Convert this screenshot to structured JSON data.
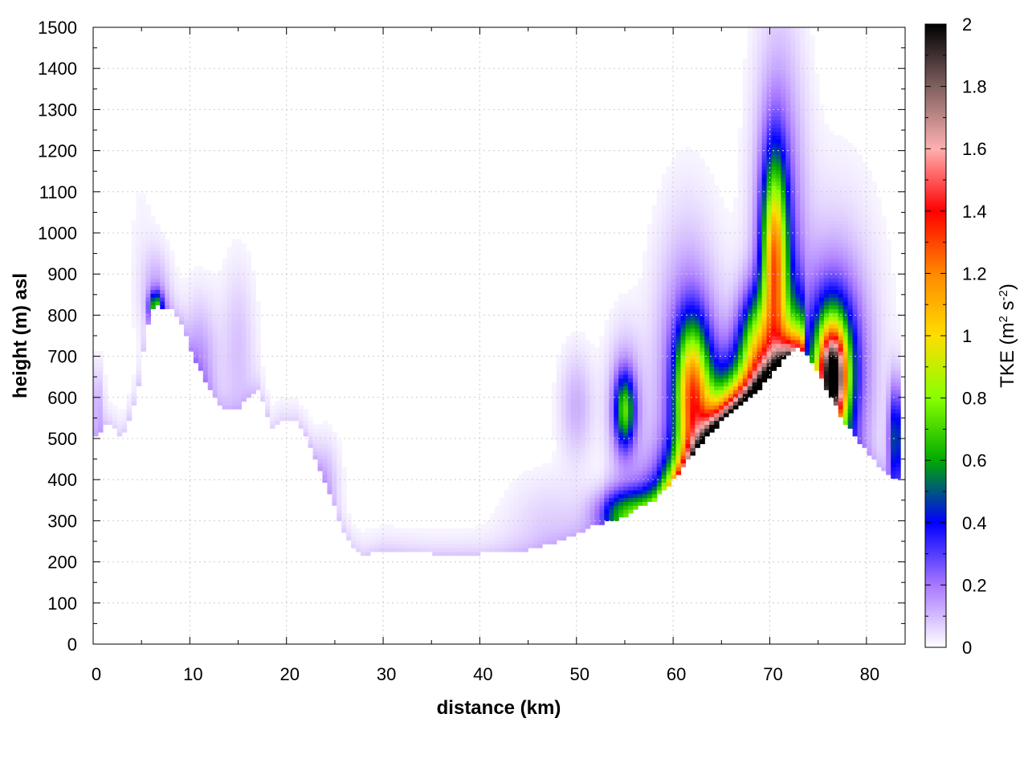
{
  "chart_data": {
    "type": "heatmap",
    "title": "",
    "xlabel": "distance (km)",
    "ylabel": "height (m) asl",
    "xlim": [
      0,
      84
    ],
    "ylim": [
      0,
      1500
    ],
    "x_ticks": [
      0,
      10,
      20,
      30,
      40,
      50,
      60,
      70,
      80
    ],
    "y_ticks": [
      0,
      100,
      200,
      300,
      400,
      500,
      600,
      700,
      800,
      900,
      1000,
      1100,
      1200,
      1300,
      1400,
      1500
    ],
    "grid": true,
    "colorbar": {
      "label_main": "TKE (m",
      "label_sup1": "2",
      "label_mid": " s",
      "label_sup2": "-2",
      "label_end": ")",
      "range": [
        0,
        2
      ],
      "ticks": [
        0,
        0.2,
        0.4,
        0.6,
        0.8,
        1,
        1.2,
        1.4,
        1.6,
        1.8,
        2
      ],
      "colors": [
        "#ffffff",
        "#a878ff",
        "#0000ff",
        "#00aa00",
        "#88ff00",
        "#ffdd00",
        "#ff8800",
        "#ff0000",
        "#ffb0b0",
        "#806060",
        "#000000"
      ]
    },
    "terrain": {
      "x": [
        0,
        1.5,
        3,
        4.5,
        5.5,
        6.3,
        7,
        8,
        9,
        10,
        11,
        12,
        13,
        14,
        15,
        16,
        17,
        18,
        18.5,
        19.5,
        21,
        22,
        23,
        24,
        25,
        26,
        27,
        28,
        30,
        35,
        40,
        45,
        48,
        50,
        52,
        55,
        57,
        58,
        60,
        62,
        64,
        66,
        68,
        70,
        71,
        72,
        73,
        74,
        75,
        76,
        77,
        78,
        79,
        80,
        81,
        82,
        83,
        83.5
      ],
      "height": [
        500,
        540,
        500,
        600,
        760,
        830,
        820,
        820,
        790,
        720,
        670,
        620,
        580,
        570,
        570,
        600,
        620,
        560,
        520,
        540,
        540,
        510,
        450,
        390,
        330,
        270,
        230,
        215,
        230,
        220,
        220,
        230,
        250,
        270,
        290,
        310,
        340,
        350,
        400,
        460,
        520,
        560,
        600,
        650,
        680,
        710,
        720,
        700,
        660,
        610,
        570,
        530,
        500,
        470,
        440,
        420,
        400,
        400
      ]
    },
    "hotspots": [
      {
        "x": 6.5,
        "z": 820,
        "sx": 0.5,
        "sz": 25,
        "v": 0.55
      },
      {
        "x": 6.5,
        "z": 860,
        "sx": 1.0,
        "sz": 70,
        "v": 0.12
      },
      {
        "x": 5,
        "z": 950,
        "sx": 1.2,
        "sz": 200,
        "v": 0.02
      },
      {
        "x": 11,
        "z": 680,
        "sx": 1.3,
        "sz": 110,
        "v": 0.15
      },
      {
        "x": 15,
        "z": 720,
        "sx": 1.2,
        "sz": 140,
        "v": 0.09
      },
      {
        "x": 24,
        "z": 400,
        "sx": 1.0,
        "sz": 70,
        "v": 0.1
      },
      {
        "x": 0.5,
        "z": 580,
        "sx": 0.4,
        "sz": 70,
        "v": 0.12
      },
      {
        "x": 50,
        "z": 580,
        "sx": 1.2,
        "sz": 90,
        "v": 0.12
      },
      {
        "x": 55,
        "z": 570,
        "sx": 0.7,
        "sz": 60,
        "v": 0.55
      },
      {
        "x": 55,
        "z": 580,
        "sx": 1.3,
        "sz": 120,
        "v": 0.18
      },
      {
        "x": 62,
        "z": 620,
        "sx": 1.2,
        "sz": 110,
        "v": 0.95
      },
      {
        "x": 61.5,
        "z": 660,
        "sx": 2.2,
        "sz": 230,
        "v": 0.25
      },
      {
        "x": 70.5,
        "z": 930,
        "sx": 0.9,
        "sz": 170,
        "v": 1.0
      },
      {
        "x": 71,
        "z": 1000,
        "sx": 1.8,
        "sz": 320,
        "v": 0.25
      },
      {
        "x": 68.5,
        "z": 730,
        "sx": 1.2,
        "sz": 90,
        "v": 0.55
      },
      {
        "x": 76.5,
        "z": 650,
        "sx": 1.0,
        "sz": 85,
        "v": 1.6
      },
      {
        "x": 76.5,
        "z": 660,
        "sx": 2.0,
        "sz": 150,
        "v": 0.55
      },
      {
        "x": 77,
        "z": 700,
        "sx": 3.0,
        "sz": 260,
        "v": 0.12
      },
      {
        "x": 83,
        "z": 500,
        "sx": 0.5,
        "sz": 90,
        "v": 0.5
      },
      {
        "x": 55,
        "z": 320,
        "sx": 2.0,
        "sz": 40,
        "v": 0.45
      },
      {
        "x": 47,
        "z": 300,
        "sx": 3.0,
        "sz": 80,
        "v": 0.06
      }
    ],
    "surface_band": {
      "x_start": 53,
      "x_end": 73.5,
      "peak_x": 67,
      "spread": 5.5,
      "peak": 2.2,
      "depth": 70
    }
  }
}
